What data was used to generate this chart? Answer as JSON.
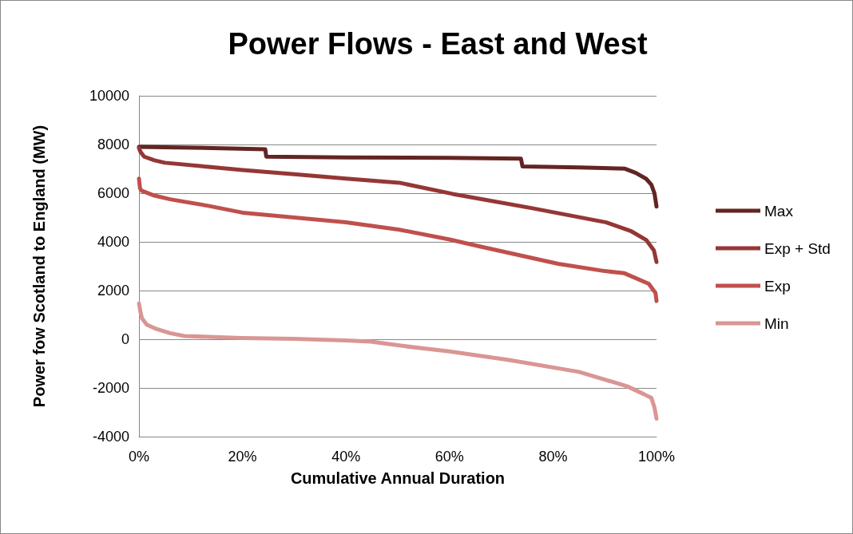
{
  "chart_data": {
    "type": "line",
    "title": "Power Flows - East and West",
    "xlabel": "Cumulative Annual Duration",
    "ylabel": "Power fow Scotland to England (MW)",
    "xlim": [
      0,
      100
    ],
    "xticks": [
      {
        "value": 0,
        "label": "0%"
      },
      {
        "value": 20,
        "label": "20%"
      },
      {
        "value": 40,
        "label": "40%"
      },
      {
        "value": 60,
        "label": "60%"
      },
      {
        "value": 80,
        "label": "80%"
      },
      {
        "value": 100,
        "label": "100%"
      }
    ],
    "ylim": [
      -4000,
      10000
    ],
    "yticks": [
      -4000,
      -2000,
      0,
      2000,
      4000,
      6000,
      8000,
      10000
    ],
    "grid": "y",
    "legend": "right",
    "marker": "none",
    "line_style": "solid",
    "series": [
      {
        "name": "Max",
        "color": "#632523",
        "x": [
          0,
          10,
          24.4,
          24.6,
          40,
          60,
          73.8,
          74.1,
          85,
          93.8,
          96,
          98,
          99,
          99.6,
          100
        ],
        "values": [
          7900,
          7870,
          7800,
          7500,
          7470,
          7450,
          7420,
          7100,
          7060,
          7010,
          6830,
          6590,
          6350,
          6000,
          5450
        ]
      },
      {
        "name": "Exp + Std",
        "color": "#953735",
        "x": [
          0,
          0.3,
          1,
          3,
          5,
          13.4,
          20,
          30,
          40,
          50.3,
          60.6,
          76,
          90.3,
          95,
          98,
          99.5,
          100
        ],
        "values": [
          7850,
          7700,
          7500,
          7350,
          7250,
          7080,
          6950,
          6780,
          6600,
          6430,
          5970,
          5380,
          4800,
          4450,
          4080,
          3650,
          3170
        ]
      },
      {
        "name": "Exp",
        "color": "#c0504d",
        "x": [
          0,
          0.2,
          0.5,
          3,
          6,
          13.4,
          20,
          30,
          40,
          50.3,
          60,
          65.7,
          81,
          90,
          93.8,
          98.5,
          99.8,
          100
        ],
        "values": [
          6600,
          6200,
          6100,
          5900,
          5750,
          5480,
          5200,
          5000,
          4800,
          4500,
          4100,
          3820,
          3100,
          2800,
          2710,
          2280,
          1900,
          1570
        ]
      },
      {
        "name": "Min",
        "color": "#d99694",
        "x": [
          0,
          0.3,
          0.6,
          1.5,
          3.4,
          6,
          8.8,
          20,
          30,
          40,
          44.8,
          51.5,
          60,
          71.5,
          85,
          94.3,
          97.5,
          99,
          99.6,
          100
        ],
        "values": [
          1470,
          1100,
          850,
          600,
          420,
          250,
          130,
          50,
          20,
          -50,
          -100,
          -290,
          -500,
          -850,
          -1340,
          -1930,
          -2250,
          -2410,
          -2800,
          -3260
        ]
      }
    ]
  }
}
